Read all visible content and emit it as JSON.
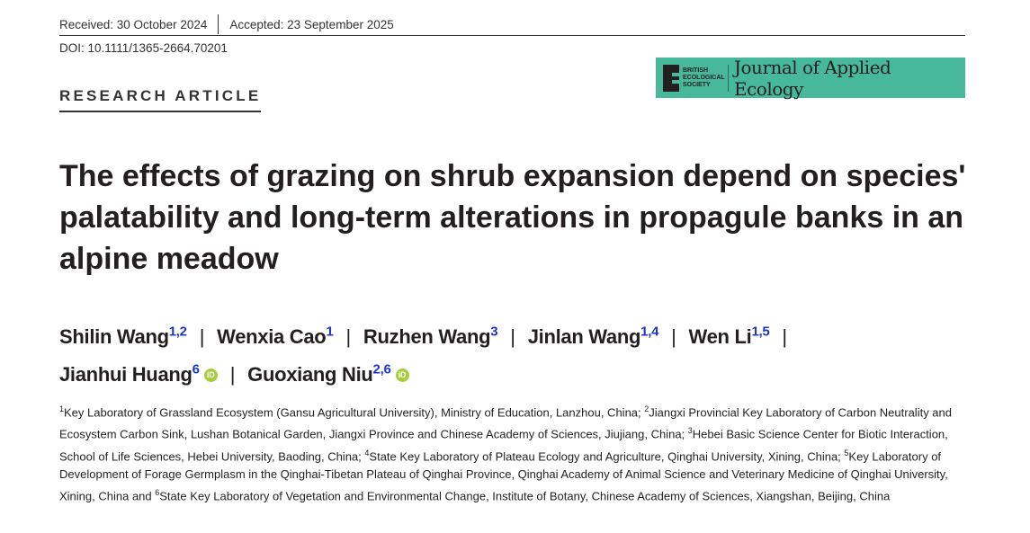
{
  "received": "Received: 30 October 2024",
  "accepted": "Accepted: 23 September 2025",
  "doi": "DOI: 10.1111/1365-2664.70201",
  "logo": {
    "society": "BRITISH ECOLOGICAL SOCIETY",
    "journal": "Journal of Applied Ecology",
    "color": "#48b89a"
  },
  "article_type": "RESEARCH ARTICLE",
  "title": "The effects of grazing on shrub expansion depend on species' palatability and long-term alterations in propagule banks in an alpine meadow",
  "authors": [
    {
      "name": "Shilin Wang",
      "sup": "1,2"
    },
    {
      "name": "Wenxia Cao",
      "sup": "1"
    },
    {
      "name": "Ruzhen Wang",
      "sup": "3"
    },
    {
      "name": "Jinlan Wang",
      "sup": "1,4"
    },
    {
      "name": "Wen Li",
      "sup": "1,5"
    },
    {
      "name": "Jianhui Huang",
      "sup": "6",
      "orcid": "iD"
    },
    {
      "name": "Guoxiang Niu",
      "sup": "2,6",
      "orcid": "iD"
    }
  ],
  "affiliations": [
    {
      "sup": "1",
      "text": "Key Laboratory of Grassland Ecosystem (Gansu Agricultural University), Ministry of Education, Lanzhou, China; "
    },
    {
      "sup": "2",
      "text": "Jiangxi Provincial Key Laboratory of Carbon Neutrality and Ecosystem Carbon Sink, Lushan Botanical Garden, Jiangxi Province and Chinese Academy of Sciences, Jiujiang, China; "
    },
    {
      "sup": "3",
      "text": "Hebei Basic Science Center for Biotic Interaction, School of Life Sciences, Hebei University, Baoding, China; "
    },
    {
      "sup": "4",
      "text": "State Key Laboratory of Plateau Ecology and Agriculture, Qinghai University, Xining, China; "
    },
    {
      "sup": "5",
      "text": "Key Laboratory of Development of Forage Germplasm in the Qinghai-Tibetan Plateau of Qinghai Province, Qinghai Academy of Animal Science and Veterinary Medicine of Qinghai University, Xining, China and "
    },
    {
      "sup": "6",
      "text": "State Key Laboratory of Vegetation and Environmental Change, Institute of Botany, Chinese Academy of Sciences, Xiangshan, Beijing, China"
    }
  ]
}
